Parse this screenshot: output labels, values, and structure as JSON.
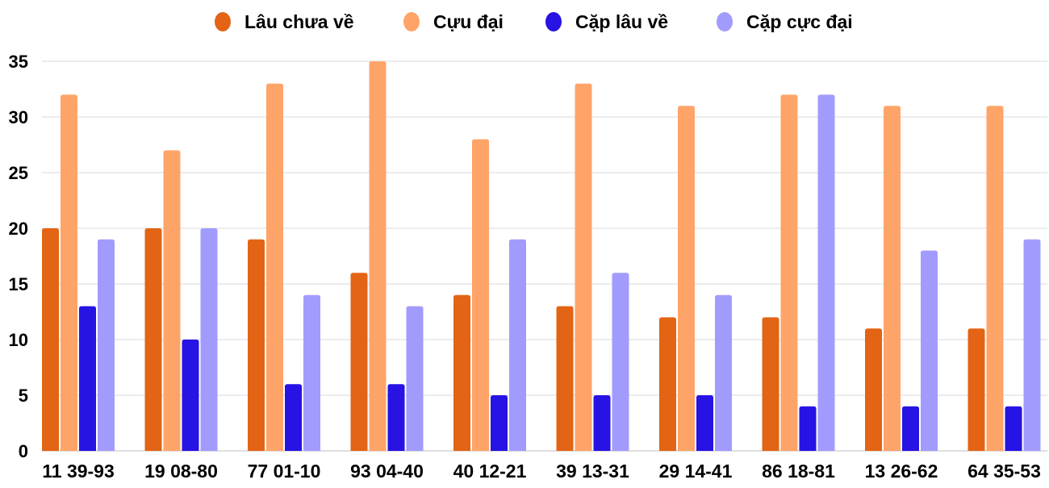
{
  "chart_data": {
    "type": "bar",
    "title": "",
    "xlabel": "",
    "ylabel": "",
    "ylim": [
      0,
      35
    ],
    "yticks": [
      0,
      5,
      10,
      15,
      20,
      25,
      30,
      35
    ],
    "grid": true,
    "legend_position": "top",
    "categories": [
      "11 39-93",
      "19 08-80",
      "77 01-10",
      "93 04-40",
      "40 12-21",
      "39 13-31",
      "29 14-41",
      "86 18-81",
      "13 26-62",
      "64 35-53"
    ],
    "series": [
      {
        "name": "Lâu chưa về",
        "color": "#e36414",
        "values": [
          20,
          20,
          19,
          16,
          14,
          13,
          12,
          12,
          11,
          11
        ]
      },
      {
        "name": "Cựu đại",
        "color": "#ffa468",
        "values": [
          32,
          27,
          33,
          35,
          28,
          33,
          31,
          32,
          31,
          31
        ]
      },
      {
        "name": "Cặp lâu về",
        "color": "#2713e3",
        "values": [
          13,
          10,
          6,
          6,
          5,
          5,
          5,
          4,
          4,
          4
        ]
      },
      {
        "name": "Cặp cực đại",
        "color": "#a29bfe",
        "values": [
          19,
          20,
          14,
          13,
          19,
          16,
          14,
          32,
          18,
          19
        ]
      }
    ]
  }
}
